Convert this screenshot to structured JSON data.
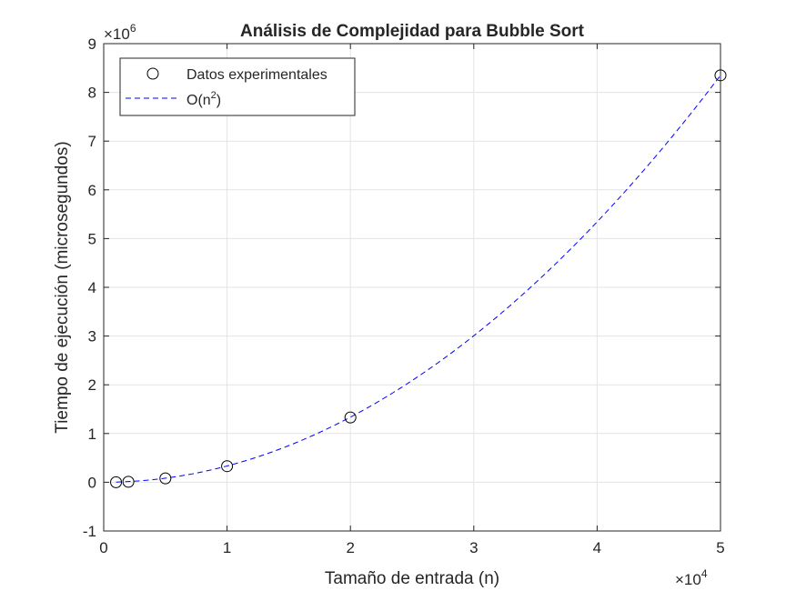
{
  "chart_data": {
    "type": "scatter",
    "title": "Análisis de Complejidad para Bubble Sort",
    "xlabel": "Tamaño de entrada (n)",
    "ylabel": "Tiempo de ejecución (microsegundos)",
    "x_exponent_label": "×10",
    "x_exponent": "4",
    "y_exponent_label": "×10",
    "y_exponent": "6",
    "x_ticks": [
      {
        "label": "0",
        "value": 0
      },
      {
        "label": "1",
        "value": 1
      },
      {
        "label": "2",
        "value": 2
      },
      {
        "label": "3",
        "value": 3
      },
      {
        "label": "4",
        "value": 4
      },
      {
        "label": "5",
        "value": 5
      }
    ],
    "y_ticks": [
      "-1",
      "0",
      "1",
      "2",
      "3",
      "4",
      "5",
      "6",
      "7",
      "8",
      "9"
    ],
    "xlim": [
      0,
      5
    ],
    "ylim": [
      -1,
      9
    ],
    "grid": true,
    "legend_position": "top-left",
    "series": [
      {
        "name": "Datos experimentales",
        "kind": "markers",
        "marker": "circle",
        "color": "#000000",
        "points": [
          {
            "x": 0.1,
            "y": 0.0
          },
          {
            "x": 0.2,
            "y": 0.01
          },
          {
            "x": 0.5,
            "y": 0.08
          },
          {
            "x": 1.0,
            "y": 0.33
          },
          {
            "x": 2.0,
            "y": 1.33
          },
          {
            "x": 5.0,
            "y": 8.35
          }
        ]
      },
      {
        "name": "O(n",
        "name_sup": "2",
        "name_suffix": ")",
        "kind": "dashed-line",
        "color": "#0000ff",
        "model": "quadratic",
        "coefficient": 0.334,
        "x_range": [
          0.1,
          5.0
        ]
      }
    ]
  }
}
